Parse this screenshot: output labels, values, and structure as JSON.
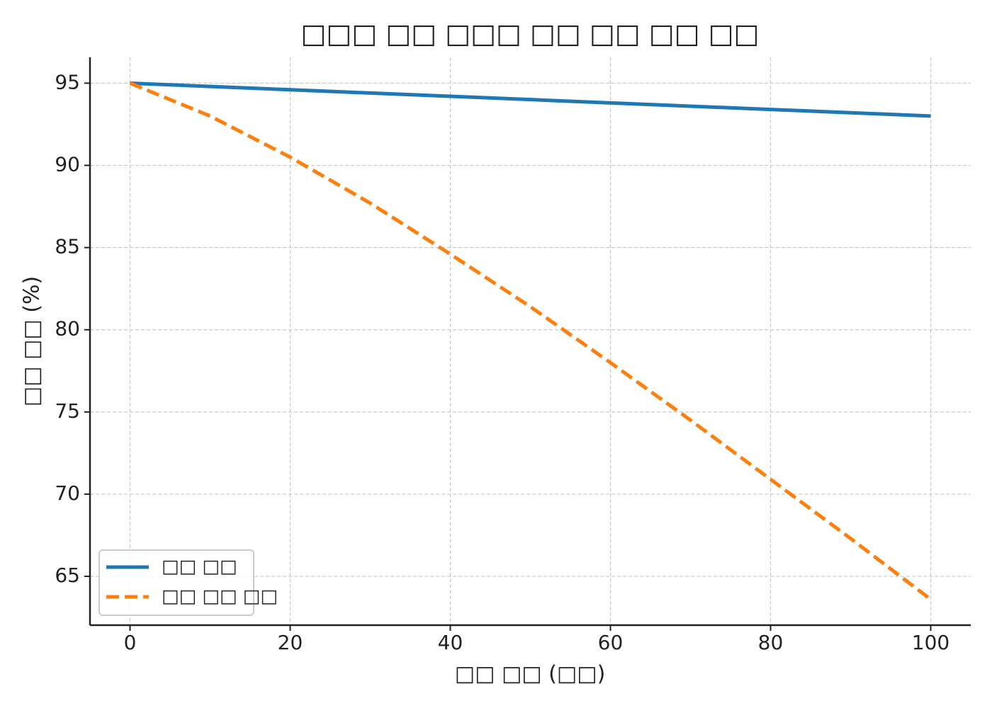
{
  "chart_data": {
    "type": "line",
    "title": "□□□ □□ □□□ □□ □□ □□ □□",
    "x_label": "□□ □□ (□□)",
    "y_label": "□□ □□ (%)",
    "x": [
      0,
      10,
      20,
      30,
      40,
      50,
      60,
      70,
      80,
      90,
      100
    ],
    "series": [
      {
        "name": "□□ □□",
        "color": "#1f77b4",
        "dash": "solid",
        "values": [
          95,
          94.8,
          94.6,
          94.4,
          94.2,
          94,
          93.8,
          93.6,
          93.4,
          93.2,
          93
        ]
      },
      {
        "name": "□□ □□ □□",
        "color": "#ff7f0e",
        "dash": "dashed",
        "values": [
          95,
          93.0,
          90.5,
          87.7,
          84.6,
          81.4,
          78.0,
          74.5,
          70.9,
          67.3,
          63.6
        ]
      }
    ],
    "xlim": [
      -5,
      105
    ],
    "ylim": [
      62.03,
      96.57
    ],
    "xticks": [
      0,
      20,
      40,
      60,
      80,
      100
    ],
    "yticks": [
      65,
      70,
      75,
      80,
      85,
      90,
      95
    ],
    "grid": true,
    "legend": "lower left"
  }
}
